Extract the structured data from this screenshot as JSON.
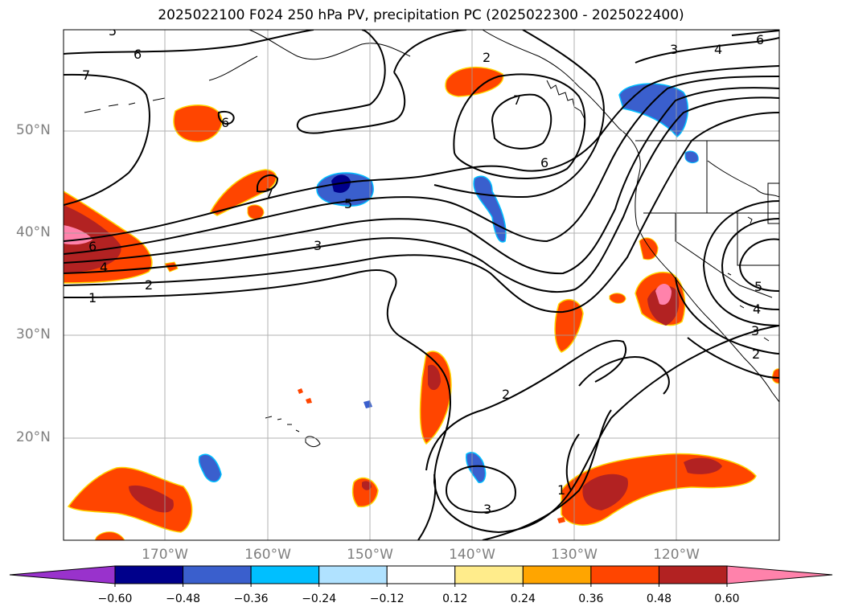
{
  "title": "2025022100 F024 250 hPa PV, precipitation PC (2025022300 - 2025022400)",
  "lat_labels": [
    "50°N",
    "40°N",
    "30°N",
    "20°N"
  ],
  "lon_labels": [
    "170°W",
    "160°W",
    "150°W",
    "140°W",
    "130°W",
    "120°W"
  ],
  "contour_labels": [
    "5",
    "6",
    "7",
    "2",
    "3",
    "4",
    "6",
    "6",
    "7",
    "5",
    "3",
    "6",
    "4",
    "2",
    "1",
    "7",
    "6",
    "5",
    "4",
    "3",
    "2",
    "2",
    "3",
    "1"
  ],
  "colorbar": {
    "ticks": [
      "−0.60",
      "−0.48",
      "−0.36",
      "−0.24",
      "−0.12",
      "0.12",
      "0.24",
      "0.36",
      "0.48",
      "0.60"
    ],
    "colors": [
      "#9932cc",
      "#00008b",
      "#3a5fcd",
      "#00bfff",
      "#b0e2ff",
      "#ffffff",
      "#ffec8b",
      "#ffa500",
      "#ff4500",
      "#b22222",
      "#ff82ab"
    ]
  }
}
